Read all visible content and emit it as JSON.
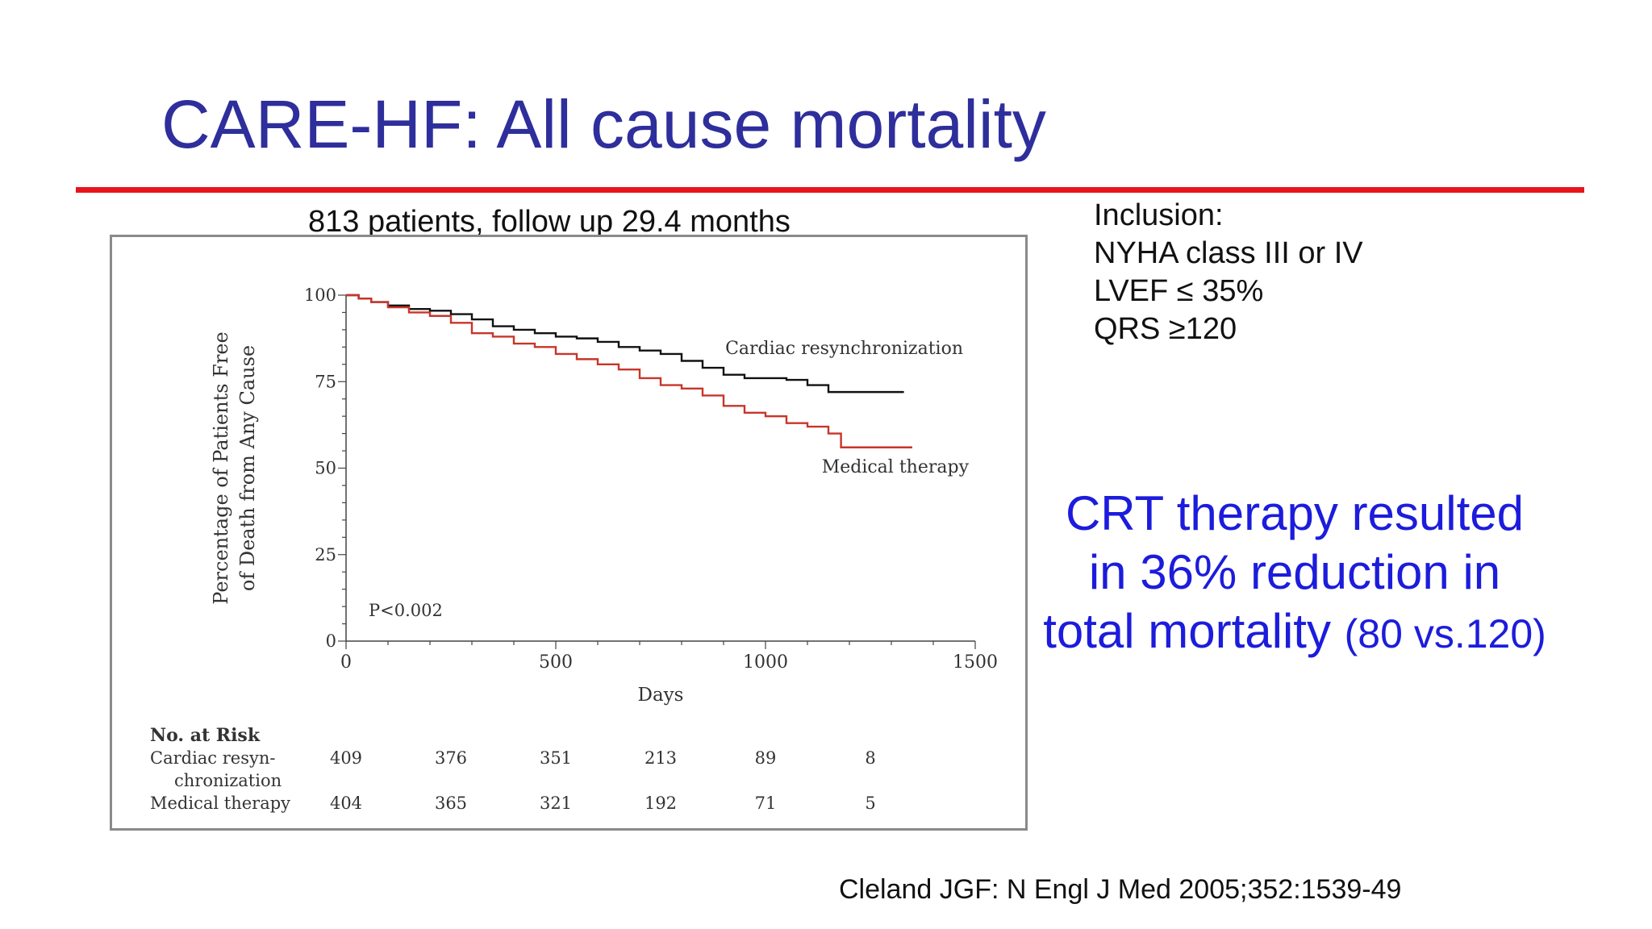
{
  "slide": {
    "title": "CARE-HF:  All cause mortality",
    "chart_caption": "813 patients, follow up 29.4 months",
    "inclusion": [
      "Inclusion:",
      "NYHA class III or IV",
      "LVEF ≤ 35%",
      "QRS ≥120"
    ],
    "conclusion_main": "CRT therapy resulted in 36% reduction in total mortality",
    "conclusion_note": "(80 vs.120)",
    "citation": "Cleland JGF: N Engl J Med 2005;352:1539-49"
  },
  "colors": {
    "title": "#2e2e9c",
    "rule": "#e8141c",
    "conclusion": "#1c1cdc",
    "crt_line": "#111111",
    "medical_line": "#c8352a"
  },
  "chart_data": {
    "type": "line",
    "title": "",
    "xlabel": "Days",
    "ylabel_lines": [
      "Percentage of Patients Free",
      "of Death from Any Cause"
    ],
    "xlim": [
      0,
      1500
    ],
    "ylim": [
      0,
      100
    ],
    "xticks": [
      0,
      500,
      1000,
      1500
    ],
    "yticks": [
      0,
      25,
      50,
      75,
      100
    ],
    "grid": false,
    "annotation": "P<0.002",
    "series": [
      {
        "name": "Cardiac resynchronization",
        "label": "Cardiac resynchronization",
        "step": true,
        "x": [
          0,
          30,
          60,
          100,
          150,
          200,
          250,
          300,
          350,
          400,
          450,
          500,
          550,
          600,
          650,
          700,
          750,
          800,
          850,
          900,
          950,
          1000,
          1050,
          1100,
          1150,
          1200,
          1250,
          1300,
          1330
        ],
        "y": [
          100,
          99,
          98,
          97,
          96,
          95.5,
          94.5,
          93,
          91,
          90,
          89,
          88,
          87.5,
          86.5,
          85,
          84,
          83,
          81,
          79,
          77,
          76,
          76,
          75.5,
          74,
          72,
          72,
          72,
          72,
          72
        ]
      },
      {
        "name": "Medical therapy",
        "label": "Medical therapy",
        "step": true,
        "x": [
          0,
          30,
          60,
          100,
          150,
          200,
          250,
          300,
          350,
          400,
          450,
          500,
          550,
          600,
          650,
          700,
          750,
          800,
          850,
          900,
          950,
          1000,
          1050,
          1100,
          1150,
          1180,
          1200,
          1250,
          1300,
          1350
        ],
        "y": [
          100,
          99,
          98,
          96.5,
          95,
          94,
          92,
          89,
          88,
          86,
          85,
          83,
          81.5,
          80,
          78.5,
          76,
          74,
          73,
          71,
          68,
          66,
          65,
          63,
          62,
          60,
          56,
          56,
          56,
          56,
          56
        ]
      }
    ],
    "risk_table": {
      "header": "No. at Risk",
      "rows": [
        {
          "label_lines": [
            "Cardiac resyn-",
            "chronization"
          ],
          "values": [
            "409",
            "376",
            "351",
            "213",
            "89",
            "8"
          ]
        },
        {
          "label_lines": [
            "Medical therapy"
          ],
          "values": [
            "404",
            "365",
            "321",
            "192",
            "71",
            "5"
          ]
        }
      ]
    }
  }
}
